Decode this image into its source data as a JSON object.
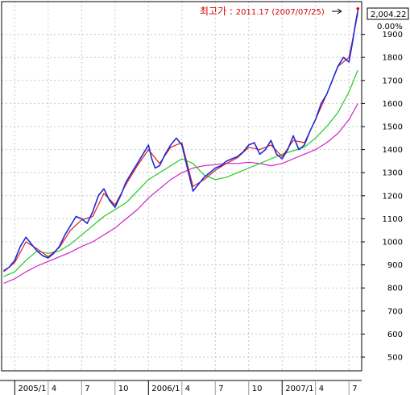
{
  "chart_data": {
    "type": "line",
    "title": "",
    "xlabel": "",
    "ylabel": "",
    "ylim": [
      440,
      2030
    ],
    "grid": true,
    "y_axis": {
      "position": "right",
      "ticks": [
        500,
        600,
        700,
        800,
        900,
        1000,
        1100,
        1200,
        1300,
        1400,
        1500,
        1600,
        1700,
        1800,
        1900
      ],
      "tick_labels": [
        "500",
        "600",
        "700",
        "800",
        "900",
        "1000",
        "1100",
        "1200",
        "1300",
        "1400",
        "1500",
        "1600",
        "1700",
        "1800",
        "1900"
      ]
    },
    "x_axis": {
      "labels": [
        "2005/1",
        "4",
        "7",
        "10",
        "2006/1",
        "4",
        "7",
        "10",
        "2007/1",
        "4",
        "7"
      ],
      "positions": [
        1,
        4,
        7,
        10,
        13,
        16,
        19,
        22,
        25,
        28,
        31
      ]
    },
    "current_value_label": "2,004.22",
    "change_label": "0.00%",
    "annotation": {
      "label": "최고가 : ",
      "value_text": "2011.17 (2007/07/25)",
      "value": 2011.17,
      "x": 31.8
    },
    "series": [
      {
        "color": "#1f2bd8",
        "x": [
          0.0,
          0.5,
          1.0,
          1.5,
          2.0,
          2.5,
          3.0,
          3.5,
          4.0,
          4.5,
          5.0,
          5.5,
          6.0,
          6.5,
          7.0,
          7.5,
          8.0,
          8.5,
          9.0,
          9.5,
          10.0,
          10.5,
          11.0,
          11.5,
          12.0,
          12.5,
          13.0,
          13.3,
          13.6,
          14.0,
          14.5,
          15.0,
          15.5,
          16.0,
          16.5,
          17.0,
          17.5,
          18.0,
          18.5,
          19.0,
          19.5,
          20.0,
          20.5,
          21.0,
          21.5,
          22.0,
          22.5,
          23.0,
          23.5,
          24.0,
          24.5,
          25.0,
          25.5,
          26.0,
          26.5,
          27.0,
          27.5,
          28.0,
          28.5,
          29.0,
          29.5,
          30.0,
          30.5,
          31.0,
          31.3,
          31.6,
          31.8
        ],
        "values": [
          875,
          890,
          920,
          980,
          1020,
          990,
          960,
          940,
          930,
          950,
          980,
          1030,
          1070,
          1110,
          1100,
          1080,
          1130,
          1200,
          1230,
          1180,
          1150,
          1200,
          1260,
          1300,
          1340,
          1380,
          1420,
          1360,
          1320,
          1330,
          1380,
          1420,
          1450,
          1420,
          1320,
          1220,
          1250,
          1280,
          1300,
          1320,
          1330,
          1350,
          1360,
          1370,
          1390,
          1420,
          1430,
          1380,
          1400,
          1440,
          1380,
          1360,
          1400,
          1460,
          1400,
          1420,
          1480,
          1530,
          1600,
          1640,
          1700,
          1760,
          1800,
          1780,
          1860,
          1950,
          2004
        ]
      },
      {
        "color": "#d81f1f",
        "x": [
          0.0,
          1.0,
          2.0,
          3.0,
          4.0,
          5.0,
          6.0,
          7.0,
          8.0,
          9.0,
          10.0,
          11.0,
          12.0,
          13.0,
          14.0,
          15.0,
          16.0,
          17.0,
          18.0,
          19.0,
          20.0,
          21.0,
          22.0,
          23.0,
          24.0,
          25.0,
          26.0,
          27.0,
          28.0,
          29.0,
          30.0,
          31.0,
          31.8
        ],
        "values": [
          870,
          910,
          1000,
          970,
          935,
          975,
          1050,
          1095,
          1110,
          1210,
          1160,
          1250,
          1330,
          1400,
          1340,
          1410,
          1430,
          1240,
          1270,
          1310,
          1340,
          1365,
          1410,
          1400,
          1420,
          1370,
          1440,
          1430,
          1530,
          1640,
          1760,
          1800,
          1990
        ]
      },
      {
        "color": "#22cc22",
        "x": [
          0.0,
          1.0,
          2.0,
          3.0,
          4.0,
          5.0,
          6.0,
          7.0,
          8.0,
          9.0,
          10.0,
          11.0,
          12.0,
          13.0,
          14.0,
          15.0,
          16.0,
          17.0,
          18.0,
          19.0,
          20.0,
          21.0,
          22.0,
          23.0,
          24.0,
          25.0,
          26.0,
          27.0,
          28.0,
          29.0,
          30.0,
          31.0,
          31.8
        ],
        "values": [
          850,
          870,
          920,
          960,
          950,
          960,
          990,
          1030,
          1070,
          1110,
          1140,
          1170,
          1220,
          1270,
          1300,
          1330,
          1360,
          1340,
          1290,
          1270,
          1280,
          1300,
          1320,
          1340,
          1360,
          1380,
          1395,
          1410,
          1450,
          1500,
          1560,
          1650,
          1745
        ]
      },
      {
        "color": "#cc22cc",
        "x": [
          0.0,
          1.0,
          2.0,
          3.0,
          4.0,
          5.0,
          6.0,
          7.0,
          8.0,
          9.0,
          10.0,
          11.0,
          12.0,
          13.0,
          14.0,
          15.0,
          16.0,
          17.0,
          18.0,
          19.0,
          20.0,
          21.0,
          22.0,
          23.0,
          24.0,
          25.0,
          26.0,
          27.0,
          28.0,
          29.0,
          30.0,
          31.0,
          31.8
        ],
        "values": [
          820,
          840,
          870,
          895,
          915,
          935,
          955,
          980,
          1000,
          1030,
          1060,
          1100,
          1140,
          1190,
          1230,
          1270,
          1300,
          1320,
          1330,
          1335,
          1340,
          1340,
          1345,
          1340,
          1330,
          1340,
          1360,
          1380,
          1400,
          1430,
          1470,
          1530,
          1600
        ]
      }
    ]
  }
}
